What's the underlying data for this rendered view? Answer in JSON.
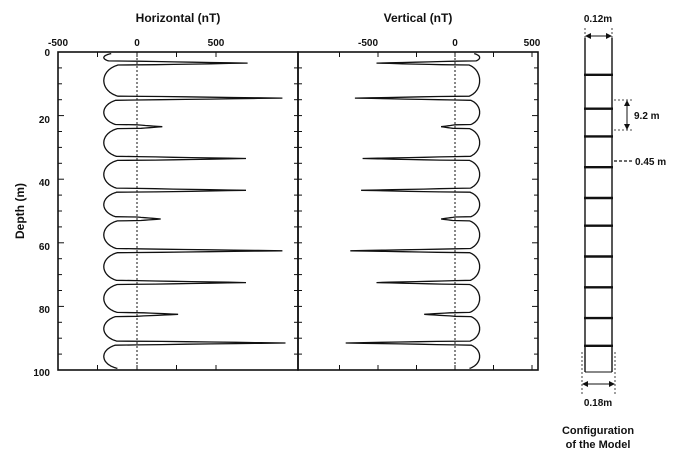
{
  "chart_data": [
    {
      "type": "line",
      "title": "Horizontal (nT)",
      "ylabel": "Depth (m)",
      "xlim": [
        -500,
        500
      ],
      "ylim": [
        0,
        100
      ],
      "y_inverted": true,
      "xticks": [
        "-500",
        "0",
        "500"
      ],
      "yticks": [
        "0",
        "20",
        "40",
        "60",
        "80",
        "100"
      ],
      "zero_line": "dotted",
      "peaks": [
        {
          "depth": 3.5,
          "value": 700
        },
        {
          "depth": 14.5,
          "value": 920
        },
        {
          "depth": 23.5,
          "value": 160
        },
        {
          "depth": 33.5,
          "value": 690
        },
        {
          "depth": 43.5,
          "value": 690
        },
        {
          "depth": 52.5,
          "value": 150
        },
        {
          "depth": 62.5,
          "value": 920
        },
        {
          "depth": 72.5,
          "value": 690
        },
        {
          "depth": 82.5,
          "value": 260
        },
        {
          "depth": 91.5,
          "value": 940
        }
      ],
      "baseline_trough": -210
    },
    {
      "type": "line",
      "title": "Vertical (nT)",
      "xlim": [
        -800,
        500
      ],
      "ylim": [
        0,
        100
      ],
      "y_inverted": true,
      "xticks": [
        "-500",
        "0",
        "500"
      ],
      "zero_line": "dotted",
      "peaks": [
        {
          "depth": 3.5,
          "value": -510
        },
        {
          "depth": 14.5,
          "value": -650
        },
        {
          "depth": 23.5,
          "value": -90
        },
        {
          "depth": 33.5,
          "value": -600
        },
        {
          "depth": 43.5,
          "value": -610
        },
        {
          "depth": 52.5,
          "value": -90
        },
        {
          "depth": 62.5,
          "value": -680
        },
        {
          "depth": 72.5,
          "value": -510
        },
        {
          "depth": 82.5,
          "value": -200
        },
        {
          "depth": 91.5,
          "value": -710
        }
      ],
      "baseline_crest": 160
    }
  ],
  "model": {
    "top_width_label": "0.12m",
    "spacing_label": "9.2 m",
    "joint_label": "0.45 m",
    "bottom_width_label": "0.18m",
    "caption_line1": "Configuration",
    "caption_line2": "of the Model",
    "joint_depths": [
      3.5,
      14.5,
      23.5,
      33.5,
      43.5,
      52.5,
      62.5,
      72.5,
      82.5,
      91.5
    ]
  }
}
